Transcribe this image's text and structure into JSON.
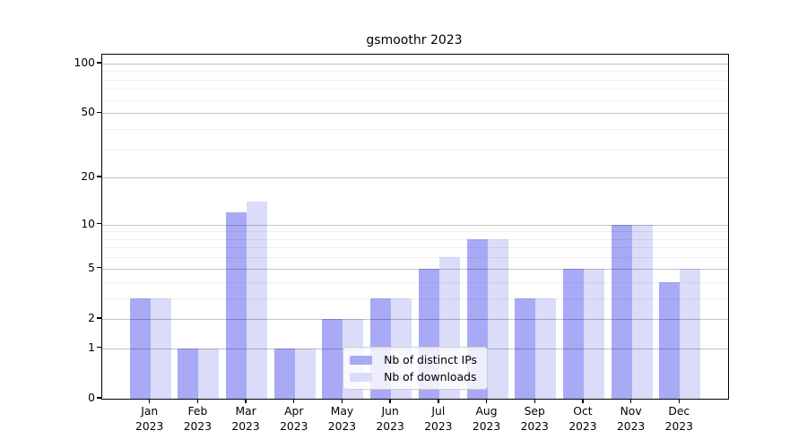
{
  "chart_data": {
    "type": "bar",
    "title": "gsmoothr 2023",
    "categories": [
      "Jan",
      "Feb",
      "Mar",
      "Apr",
      "May",
      "Jun",
      "Jul",
      "Aug",
      "Sep",
      "Oct",
      "Nov",
      "Dec"
    ],
    "year": "2023",
    "series": [
      {
        "key": "distinct-ips",
        "name": "Nb of distinct IPs",
        "color": "#a8aaf5",
        "values": [
          3,
          1,
          12,
          1,
          2,
          3,
          5,
          8,
          3,
          5,
          10,
          4
        ]
      },
      {
        "key": "downloads",
        "name": "Nb of downloads",
        "color": "#dbdcfa",
        "values": [
          3,
          1,
          14,
          1,
          2,
          3,
          6,
          8,
          3,
          5,
          10,
          5
        ]
      }
    ],
    "xlabel": "",
    "ylabel": "",
    "yscale": "log1p",
    "ylim": [
      0,
      113
    ],
    "yticks": [
      0,
      1,
      2,
      5,
      10,
      20,
      50,
      100
    ],
    "yticks_minor": [
      3,
      4,
      6,
      7,
      8,
      9,
      30,
      40,
      60,
      70,
      80,
      90
    ],
    "grid": {
      "horizontal": true,
      "drawn_over_bars": true
    },
    "legend": {
      "position": "lower center"
    },
    "colors": {
      "bar_distinct_ips": "#a8aaf5",
      "bar_downloads": "#dbdcfa",
      "grid_major": "#c3c3c3",
      "grid_minor": "#f0f0f0",
      "axis": "#000000",
      "background": "#ffffff"
    }
  }
}
